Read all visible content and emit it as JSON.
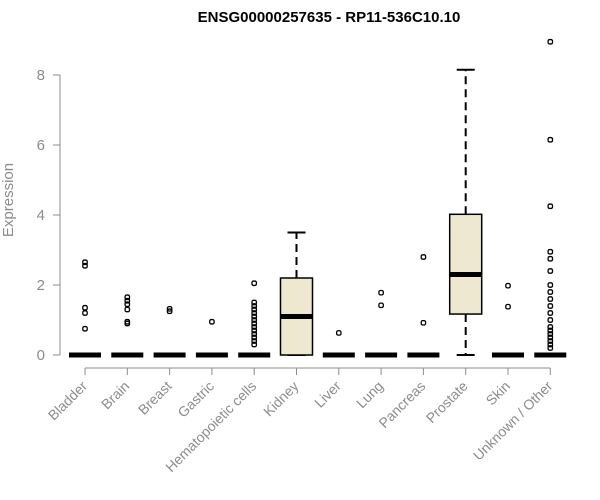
{
  "chart_data": {
    "type": "box",
    "title": "ENSG00000257635 - RP11-536C10.10",
    "xlabel": "",
    "ylabel": "Expression",
    "ylim": [
      0,
      9
    ],
    "yticks": [
      0,
      2,
      4,
      6,
      8
    ],
    "box_fill": "#efe8d0",
    "categories": [
      "Bladder",
      "Brain",
      "Breast",
      "Gastric",
      "Hematopoietic cells",
      "Kidney",
      "Liver",
      "Lung",
      "Pancreas",
      "Prostate",
      "Skin",
      "Unknown / Other"
    ],
    "boxes": [
      {
        "category": "Bladder",
        "min": 0,
        "q1": 0,
        "median": 0,
        "q3": 0,
        "max": 0,
        "outliers": [
          0.75,
          1.2,
          1.35,
          2.55,
          2.65
        ]
      },
      {
        "category": "Brain",
        "min": 0,
        "q1": 0,
        "median": 0,
        "q3": 0,
        "max": 0,
        "outliers": [
          0.9,
          0.95,
          1.3,
          1.45,
          1.55,
          1.65
        ]
      },
      {
        "category": "Breast",
        "min": 0,
        "q1": 0,
        "median": 0,
        "q3": 0,
        "max": 0,
        "outliers": [
          1.25,
          1.32
        ]
      },
      {
        "category": "Gastric",
        "min": 0,
        "q1": 0,
        "median": 0,
        "q3": 0,
        "max": 0,
        "outliers": [
          0.95
        ]
      },
      {
        "category": "Hematopoietic cells",
        "min": 0,
        "q1": 0,
        "median": 0,
        "q3": 0,
        "max": 0,
        "outliers": [
          0.3,
          0.4,
          0.5,
          0.6,
          0.7,
          0.8,
          0.9,
          1.0,
          1.1,
          1.2,
          1.3,
          1.4,
          1.5,
          2.05
        ]
      },
      {
        "category": "Kidney",
        "min": 0,
        "q1": 0,
        "median": 1.1,
        "q3": 2.2,
        "max": 3.5,
        "outliers": []
      },
      {
        "category": "Liver",
        "min": 0,
        "q1": 0,
        "median": 0,
        "q3": 0,
        "max": 0,
        "outliers": [
          0.63
        ]
      },
      {
        "category": "Lung",
        "min": 0,
        "q1": 0,
        "median": 0,
        "q3": 0,
        "max": 0,
        "outliers": [
          1.42,
          1.78
        ]
      },
      {
        "category": "Pancreas",
        "min": 0,
        "q1": 0,
        "median": 0,
        "q3": 0,
        "max": 0,
        "outliers": [
          0.92,
          2.8
        ]
      },
      {
        "category": "Prostate",
        "min": 0,
        "q1": 1.17,
        "median": 2.3,
        "q3": 4.02,
        "max": 8.15,
        "outliers": []
      },
      {
        "category": "Skin",
        "min": 0,
        "q1": 0,
        "median": 0,
        "q3": 0,
        "max": 0,
        "outliers": [
          1.38,
          1.98
        ]
      },
      {
        "category": "Unknown / Other",
        "min": 0,
        "q1": 0,
        "median": 0,
        "q3": 0,
        "max": 0,
        "outliers": [
          0.2,
          0.3,
          0.4,
          0.5,
          0.6,
          0.7,
          0.8,
          1.0,
          1.2,
          1.4,
          1.6,
          1.8,
          2.0,
          2.4,
          2.75,
          2.95,
          4.25,
          6.15,
          8.95
        ]
      }
    ]
  }
}
